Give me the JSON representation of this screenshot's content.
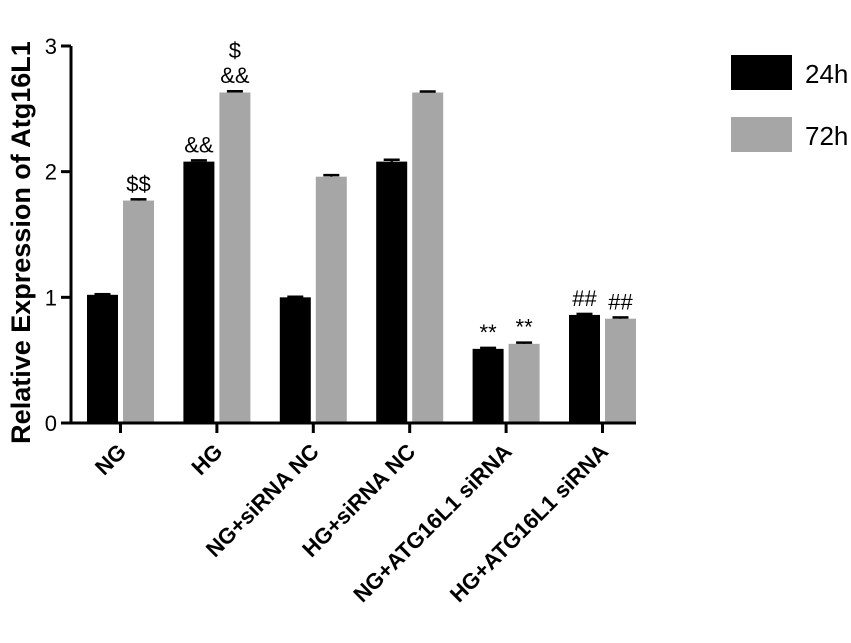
{
  "chart_data": {
    "type": "bar",
    "ylabel": "Relative Expression of Atg16L1",
    "xlabel": "",
    "ylim": [
      0,
      3
    ],
    "yticks": [
      "0",
      "1",
      "2",
      "3"
    ],
    "categories": [
      "NG",
      "HG",
      "NG+siRNA NC",
      "HG+siRNA NC",
      "NG+ATG16L1 siRNA",
      "HG+ATG16L1 siRNA"
    ],
    "series": [
      {
        "name": "24h",
        "color": "#000000",
        "values": [
          1.02,
          2.08,
          1.0,
          2.08,
          0.59,
          0.86
        ],
        "errors": [
          0.005,
          0.01,
          0.005,
          0.015,
          0.008,
          0.008
        ],
        "annotations": [
          "",
          "&&",
          "",
          "",
          "**",
          "##"
        ]
      },
      {
        "name": "72h",
        "color": "#a6a6a6",
        "values": [
          1.77,
          2.63,
          1.96,
          2.63,
          0.63,
          0.83
        ],
        "errors": [
          0.01,
          0.01,
          0.012,
          0.008,
          0.01,
          0.01
        ],
        "annotations": [
          "$$",
          "$\n&&",
          "",
          "",
          "**",
          "##"
        ]
      }
    ],
    "legend_position": "top-right"
  }
}
